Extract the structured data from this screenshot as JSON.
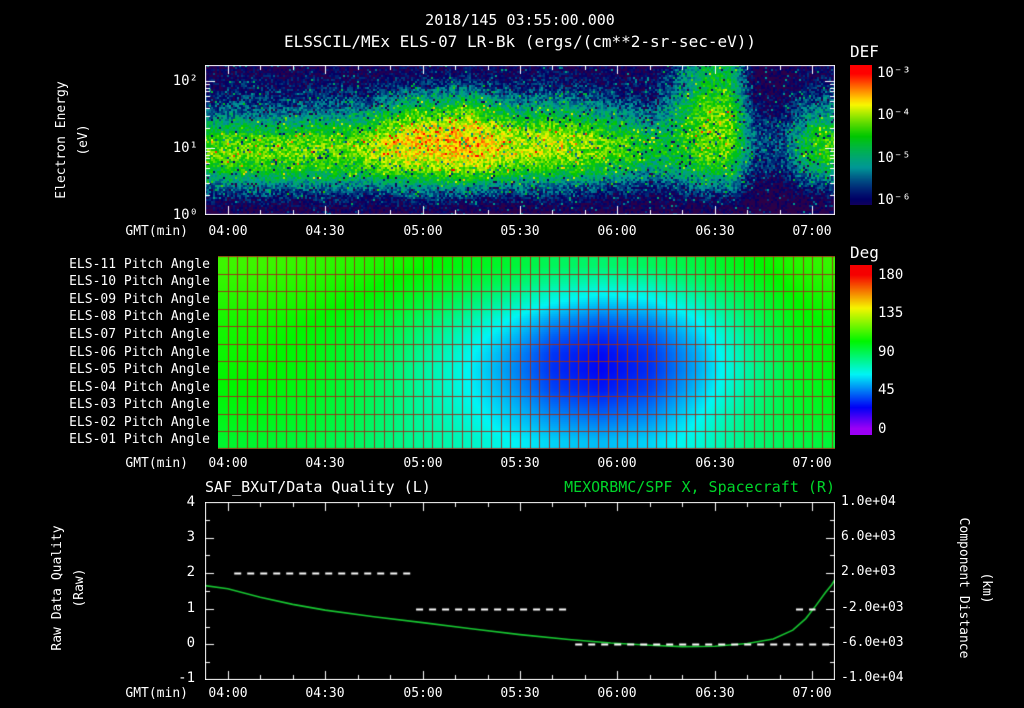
{
  "header": {
    "datetime": "2018/145 03:55:00.000",
    "title": "ELSSCIL/MEx ELS-07 LR-Bk (ergs/(cm**2-sr-sec-eV))"
  },
  "colors": {
    "background": "#000000",
    "text": "#ffffff",
    "green": "#00d62a",
    "curve_green": "#18c832",
    "grid_red": "#9b2c1a",
    "quality_white": "#ffffff"
  },
  "time_axis": {
    "label": "GMT(min)",
    "start_min": 233,
    "end_min": 427,
    "tick_minutes": [
      240,
      270,
      300,
      330,
      360,
      390,
      420
    ],
    "tick_labels": [
      "04:00",
      "04:30",
      "05:00",
      "05:30",
      "06:00",
      "06:30",
      "07:00"
    ],
    "minor_step_min": 10
  },
  "spectrogram_panel": {
    "ylabel_line1": "Electron Energy",
    "ylabel_line2": "(eV)",
    "ytick_labels": [
      "10²",
      "10¹",
      "10⁰"
    ],
    "ytick_log10": [
      2,
      1,
      0
    ],
    "y_top_log10": 2.24,
    "colorbar": {
      "title": "DEF",
      "tick_labels": [
        "10⁻³",
        "10⁻⁴",
        "10⁻⁵",
        "10⁻⁶"
      ],
      "tick_log10": [
        -3,
        -4,
        -5,
        -6
      ],
      "top_log10": -2.8,
      "bottom_log10": -6.15
    }
  },
  "pitch_panel": {
    "colorbar": {
      "title": "Deg",
      "tick_labels": [
        "180",
        "135",
        "90",
        "45",
        "0"
      ],
      "tick_values": [
        180,
        135,
        90,
        45,
        0
      ],
      "top_value": 191,
      "bottom_value": -7
    }
  },
  "bottom_panel": {
    "left_axis": {
      "label_line1": "Raw Data Quality",
      "label_line2": "(Raw)",
      "tick_labels": [
        "4",
        "3",
        "2",
        "1",
        "0",
        "-1"
      ],
      "tick_values": [
        4,
        3,
        2,
        1,
        0,
        -1
      ],
      "range": [
        4,
        -1
      ]
    },
    "right_axis": {
      "label_line1": "Component Distance",
      "label_line2": "(km)",
      "tick_labels": [
        "1.0e+04",
        "6.0e+03",
        "2.0e+03",
        "-2.0e+03",
        "-6.0e+03",
        "-1.0e+04"
      ],
      "tick_values": [
        10000,
        6000,
        2000,
        -2000,
        -6000,
        -10000
      ],
      "range": [
        10000,
        -10000
      ]
    }
  },
  "chart_data": [
    {
      "type": "heatmap",
      "name": "electron-energy-spectrogram",
      "title": "ELSSCIL/MEx ELS-07 LR-Bk",
      "units": "ergs/(cm**2-sr-sec-eV)",
      "xlabel": "GMT(min)",
      "ylabel": "Electron Energy (eV)",
      "y_scale": "log",
      "colorbar_label": "DEF",
      "noise_amp_log10": 0.4,
      "time_min": [
        233,
        241,
        249,
        257,
        265,
        273,
        281,
        289,
        297,
        305,
        313,
        321,
        329,
        337,
        345,
        353,
        361,
        369,
        377,
        385,
        393,
        401,
        409,
        417,
        425
      ],
      "energies_log10_ev": [
        2.2,
        1.98,
        1.76,
        1.54,
        1.32,
        1.1,
        0.88,
        0.66,
        0.44,
        0.22,
        0.0
      ],
      "values_log10_def": [
        [
          -6.3,
          -6.3,
          -6.2,
          -6.3,
          -6.3,
          -6.2,
          -6.3,
          -6.2,
          -6.1,
          -6.2,
          -6.1,
          -6.2,
          -6.2,
          -6.1,
          -6.2,
          -6.2,
          -6.3,
          -6.3,
          -5.6,
          -4.9,
          -4.9,
          -6.4,
          -6.4,
          -6.2,
          -6.1
        ],
        [
          -6.1,
          -6.0,
          -6.0,
          -6.1,
          -6.0,
          -6.0,
          -6.1,
          -6.0,
          -5.9,
          -5.9,
          -5.8,
          -6.0,
          -6.0,
          -5.9,
          -6.0,
          -6.0,
          -6.1,
          -6.1,
          -5.5,
          -4.7,
          -4.7,
          -6.3,
          -6.3,
          -6.0,
          -5.9
        ],
        [
          -5.9,
          -5.8,
          -5.8,
          -5.9,
          -5.8,
          -5.8,
          -5.8,
          -5.5,
          -5.2,
          -5.2,
          -5.0,
          -5.4,
          -5.6,
          -5.5,
          -5.6,
          -5.7,
          -5.8,
          -5.9,
          -5.3,
          -4.5,
          -4.5,
          -6.2,
          -6.2,
          -5.8,
          -5.6
        ],
        [
          -5.6,
          -5.5,
          -5.5,
          -5.5,
          -5.4,
          -5.4,
          -5.3,
          -4.9,
          -4.5,
          -4.5,
          -4.3,
          -4.7,
          -5.0,
          -4.9,
          -5.0,
          -5.2,
          -5.4,
          -5.6,
          -5.0,
          -4.3,
          -4.3,
          -6.0,
          -6.0,
          -5.4,
          -5.2
        ],
        [
          -5.0,
          -4.9,
          -4.9,
          -4.9,
          -4.8,
          -4.8,
          -4.7,
          -4.2,
          -3.9,
          -3.9,
          -3.8,
          -4.1,
          -4.4,
          -4.3,
          -4.4,
          -4.6,
          -4.9,
          -5.2,
          -4.8,
          -4.2,
          -4.2,
          -5.8,
          -5.8,
          -5.0,
          -4.7
        ],
        [
          -4.4,
          -4.3,
          -4.3,
          -4.3,
          -4.3,
          -4.2,
          -4.2,
          -3.8,
          -3.6,
          -3.6,
          -3.5,
          -3.7,
          -4.0,
          -3.9,
          -4.0,
          -4.2,
          -4.4,
          -4.7,
          -4.6,
          -4.2,
          -4.2,
          -5.6,
          -5.6,
          -4.6,
          -4.3
        ],
        [
          -4.3,
          -4.2,
          -4.2,
          -4.2,
          -4.2,
          -4.2,
          -4.1,
          -3.8,
          -3.7,
          -3.7,
          -3.6,
          -3.8,
          -4.0,
          -4.0,
          -4.1,
          -4.2,
          -4.4,
          -4.7,
          -4.7,
          -4.3,
          -4.3,
          -5.7,
          -5.7,
          -4.7,
          -4.4
        ],
        [
          -4.7,
          -4.6,
          -4.6,
          -4.6,
          -4.6,
          -4.6,
          -4.5,
          -4.3,
          -4.2,
          -4.2,
          -4.1,
          -4.3,
          -4.5,
          -4.5,
          -4.6,
          -4.7,
          -4.9,
          -5.2,
          -5.0,
          -4.7,
          -4.7,
          -5.9,
          -5.9,
          -5.1,
          -4.8
        ],
        [
          -5.4,
          -5.3,
          -5.3,
          -5.3,
          -5.3,
          -5.3,
          -5.3,
          -5.2,
          -5.1,
          -5.1,
          -5.0,
          -5.2,
          -5.3,
          -5.3,
          -5.4,
          -5.5,
          -5.6,
          -5.8,
          -5.6,
          -5.3,
          -5.3,
          -6.2,
          -6.2,
          -5.8,
          -5.6
        ],
        [
          -6.0,
          -6.0,
          -5.9,
          -6.0,
          -6.0,
          -5.9,
          -6.0,
          -5.9,
          -5.9,
          -5.9,
          -5.9,
          -6.0,
          -6.0,
          -6.0,
          -6.0,
          -6.1,
          -6.1,
          -6.2,
          -6.1,
          -6.0,
          -6.0,
          -6.4,
          -6.4,
          -6.2,
          -6.1
        ],
        [
          -6.4,
          -6.4,
          -6.4,
          -6.4,
          -6.4,
          -6.4,
          -6.4,
          -6.4,
          -6.4,
          -6.4,
          -6.4,
          -6.4,
          -6.4,
          -6.4,
          -6.4,
          -6.4,
          -6.4,
          -6.4,
          -6.4,
          -6.4,
          -6.4,
          -6.5,
          -6.5,
          -6.4,
          -6.4
        ]
      ]
    },
    {
      "type": "heatmap",
      "name": "pitch-angle-heatmap",
      "units": "degrees",
      "colorbar_label": "Deg",
      "rows": [
        "ELS-11 Pitch Angle",
        "ELS-10 Pitch Angle",
        "ELS-09 Pitch Angle",
        "ELS-08 Pitch Angle",
        "ELS-07 Pitch Angle",
        "ELS-06 Pitch Angle",
        "ELS-05 Pitch Angle",
        "ELS-04 Pitch Angle",
        "ELS-03 Pitch Angle",
        "ELS-02 Pitch Angle",
        "ELS-01 Pitch Angle"
      ],
      "time_min": [
        235,
        250,
        265,
        280,
        295,
        310,
        325,
        340,
        355,
        370,
        385,
        400,
        415,
        430
      ],
      "values_deg": [
        [
          112,
          112,
          110,
          108,
          105,
          100,
          95,
          88,
          85,
          88,
          92,
          100,
          108,
          112
        ],
        [
          110,
          110,
          108,
          105,
          100,
          95,
          88,
          78,
          72,
          75,
          85,
          95,
          105,
          110
        ],
        [
          108,
          108,
          106,
          102,
          96,
          88,
          78,
          65,
          58,
          62,
          75,
          90,
          102,
          108
        ],
        [
          106,
          106,
          103,
          98,
          90,
          80,
          66,
          50,
          42,
          48,
          65,
          85,
          100,
          106
        ],
        [
          105,
          105,
          101,
          95,
          86,
          74,
          58,
          40,
          32,
          38,
          58,
          80,
          98,
          105
        ],
        [
          104,
          104,
          100,
          93,
          83,
          70,
          52,
          33,
          26,
          33,
          53,
          78,
          96,
          104
        ],
        [
          103,
          103,
          99,
          92,
          81,
          68,
          50,
          32,
          25,
          32,
          52,
          76,
          95,
          103
        ],
        [
          102,
          102,
          98,
          91,
          81,
          68,
          52,
          35,
          28,
          35,
          55,
          78,
          95,
          102
        ],
        [
          100,
          100,
          96,
          90,
          80,
          70,
          56,
          42,
          36,
          42,
          60,
          80,
          94,
          100
        ],
        [
          98,
          98,
          95,
          89,
          80,
          72,
          60,
          50,
          45,
          50,
          65,
          82,
          93,
          98
        ],
        [
          95,
          95,
          92,
          87,
          80,
          74,
          65,
          58,
          54,
          58,
          68,
          82,
          90,
          95
        ]
      ]
    },
    {
      "type": "line",
      "name": "quality-and-spacecraft-distance",
      "left_axis_label": "Raw Data Quality (Raw)",
      "right_axis_label": "Component Distance (km)",
      "left_range": [
        -1,
        4
      ],
      "right_range": [
        -10000,
        10000
      ],
      "series": [
        {
          "name": "SAF_BXuT/Data Quality (L)",
          "axis": "left",
          "color": "#ffffff",
          "line_style": "dashed",
          "segments": [
            {
              "value": 2,
              "start_min": 242,
              "end_min": 297
            },
            {
              "value": 1,
              "start_min": 298,
              "end_min": 345
            },
            {
              "value": 0,
              "start_min": 347,
              "end_min": 426
            },
            {
              "value": 1,
              "start_min": 415,
              "end_min": 421
            }
          ]
        },
        {
          "name": "MEXORBMC/SPF X, Spacecraft (R)",
          "axis": "right",
          "color": "#18c832",
          "line_style": "solid",
          "points_min_km": [
            [
              233,
              600
            ],
            [
              240,
              250
            ],
            [
              250,
              -700
            ],
            [
              260,
              -1500
            ],
            [
              270,
              -2150
            ],
            [
              285,
              -2900
            ],
            [
              300,
              -3550
            ],
            [
              315,
              -4250
            ],
            [
              330,
              -4900
            ],
            [
              345,
              -5450
            ],
            [
              358,
              -5850
            ],
            [
              370,
              -6100
            ],
            [
              380,
              -6250
            ],
            [
              390,
              -6200
            ],
            [
              400,
              -5900
            ],
            [
              408,
              -5400
            ],
            [
              414,
              -4400
            ],
            [
              418,
              -3100
            ],
            [
              421,
              -1700
            ],
            [
              424,
              -200
            ],
            [
              426,
              700
            ],
            [
              427,
              1300
            ]
          ]
        }
      ]
    }
  ]
}
